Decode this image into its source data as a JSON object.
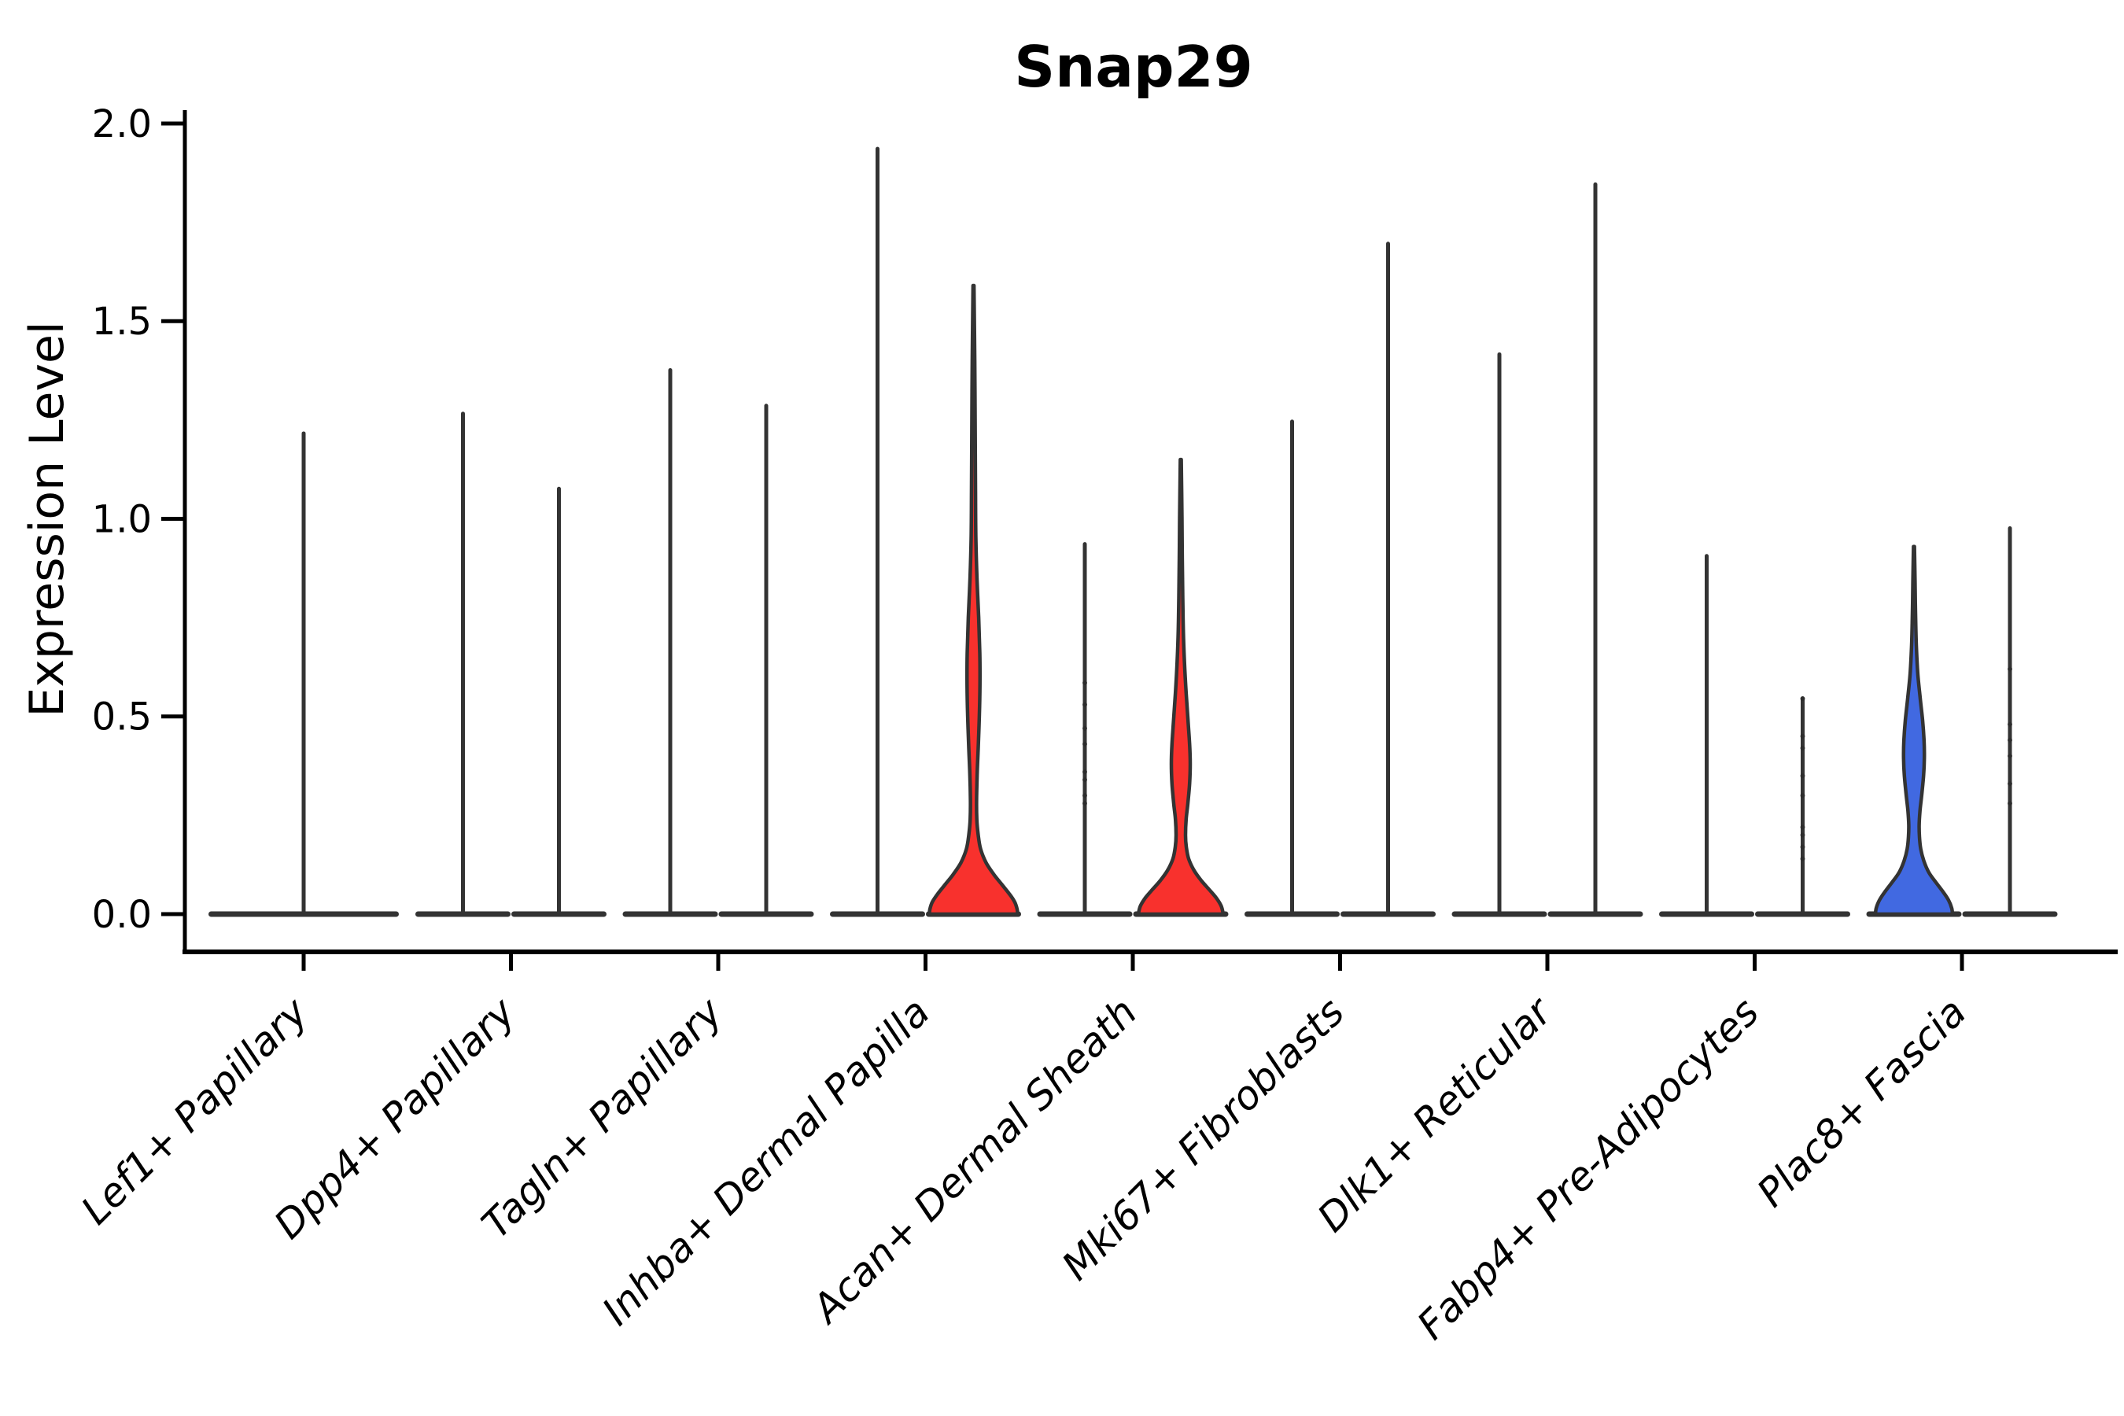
{
  "chart_data": {
    "type": "violin",
    "title": "Snap29",
    "xlabel": "",
    "ylabel": "Expression Level",
    "ylim": [
      0.0,
      2.0
    ],
    "yticks": [
      0.0,
      0.5,
      1.0,
      1.5,
      2.0
    ],
    "ytick_labels": [
      "0.0",
      "0.5",
      "1.0",
      "1.5",
      "2.0"
    ],
    "grid": false,
    "legend": "none",
    "categories": [
      "Lef1+ Papillary",
      "Dpp4+ Papillary",
      "Tagln+ Papillary",
      "Inhba+ Dermal Papilla",
      "Acan+ Dermal Sheath",
      "Mki67+ Fibroblasts",
      "Dlk1+ Reticular",
      "Fabp4+ Pre-Adipocytes",
      "Plac8+ Fascia"
    ],
    "colors": {
      "red_fill": "#F8312D",
      "blue_fill": "#4169E1",
      "violin_outline": "#333333",
      "axis": "#000000"
    },
    "violins": [
      {
        "category": "Lef1+ Papillary",
        "slot": "center",
        "style": "spike",
        "max_expression": 1.22,
        "color": "#333333",
        "dots": []
      },
      {
        "category": "Dpp4+ Papillary",
        "slot": "left",
        "style": "spike",
        "max_expression": 1.27,
        "color": "#333333",
        "dots": []
      },
      {
        "category": "Dpp4+ Papillary",
        "slot": "right",
        "style": "spike",
        "max_expression": 1.08,
        "color": "#333333",
        "dots": []
      },
      {
        "category": "Tagln+ Papillary",
        "slot": "left",
        "style": "spike",
        "max_expression": 1.38,
        "color": "#333333",
        "dots": []
      },
      {
        "category": "Tagln+ Papillary",
        "slot": "right",
        "style": "spike",
        "max_expression": 1.29,
        "color": "#333333",
        "dots": []
      },
      {
        "category": "Inhba+ Dermal Papilla",
        "slot": "left",
        "style": "spike",
        "max_expression": 1.94,
        "color": "#333333",
        "dots": []
      },
      {
        "category": "Inhba+ Dermal Papilla",
        "slot": "right",
        "style": "filled",
        "max_expression": 1.59,
        "color": "#F8312D",
        "profile": [
          [
            1.59,
            0.6
          ],
          [
            1.4,
            1.6
          ],
          [
            1.2,
            2.2
          ],
          [
            1.05,
            2.6
          ],
          [
            0.95,
            3.0
          ],
          [
            0.85,
            4.4
          ],
          [
            0.75,
            6.6
          ],
          [
            0.66,
            8.0
          ],
          [
            0.58,
            8.2
          ],
          [
            0.5,
            7.4
          ],
          [
            0.42,
            6.0
          ],
          [
            0.35,
            4.6
          ],
          [
            0.29,
            3.9
          ],
          [
            0.24,
            4.2
          ],
          [
            0.2,
            6.0
          ],
          [
            0.165,
            9.0
          ],
          [
            0.13,
            16.0
          ],
          [
            0.1,
            26.0
          ],
          [
            0.075,
            36.0
          ],
          [
            0.05,
            46.0
          ],
          [
            0.03,
            52.5
          ],
          [
            0.012,
            55.5
          ],
          [
            0.0,
            56.0
          ]
        ],
        "dots": []
      },
      {
        "category": "Acan+ Dermal Sheath",
        "slot": "left",
        "style": "spike",
        "max_expression": 0.94,
        "color": "#333333",
        "dots": [
          0.585,
          0.53,
          0.47,
          0.43,
          0.36,
          0.34,
          0.3,
          0.28
        ]
      },
      {
        "category": "Acan+ Dermal Sheath",
        "slot": "right",
        "style": "filled",
        "max_expression": 1.15,
        "color": "#F8312D",
        "profile": [
          [
            1.15,
            0.6
          ],
          [
            1.0,
            1.5
          ],
          [
            0.9,
            1.9
          ],
          [
            0.8,
            2.5
          ],
          [
            0.72,
            3.2
          ],
          [
            0.64,
            4.6
          ],
          [
            0.56,
            6.8
          ],
          [
            0.49,
            9.2
          ],
          [
            0.43,
            11.2
          ],
          [
            0.38,
            12.0
          ],
          [
            0.33,
            11.2
          ],
          [
            0.28,
            9.0
          ],
          [
            0.24,
            6.8
          ],
          [
            0.2,
            6.0
          ],
          [
            0.17,
            7.0
          ],
          [
            0.14,
            10.0
          ],
          [
            0.11,
            17.0
          ],
          [
            0.085,
            26.0
          ],
          [
            0.06,
            37.0
          ],
          [
            0.04,
            45.5
          ],
          [
            0.02,
            51.5
          ],
          [
            0.0,
            54.0
          ]
        ],
        "dots": []
      },
      {
        "category": "Mki67+ Fibroblasts",
        "slot": "left",
        "style": "spike",
        "max_expression": 1.25,
        "color": "#333333",
        "dots": []
      },
      {
        "category": "Mki67+ Fibroblasts",
        "slot": "right",
        "style": "spike",
        "max_expression": 1.7,
        "color": "#333333",
        "dots": []
      },
      {
        "category": "Dlk1+ Reticular",
        "slot": "left",
        "style": "spike",
        "max_expression": 1.42,
        "color": "#333333",
        "dots": []
      },
      {
        "category": "Dlk1+ Reticular",
        "slot": "right",
        "style": "spike",
        "max_expression": 1.85,
        "color": "#333333",
        "dots": []
      },
      {
        "category": "Fabp4+ Pre-Adipocytes",
        "slot": "left",
        "style": "spike",
        "max_expression": 0.91,
        "color": "#333333",
        "dots": []
      },
      {
        "category": "Fabp4+ Pre-Adipocytes",
        "slot": "right",
        "style": "spike",
        "max_expression": 0.55,
        "color": "#333333",
        "dots": [
          0.545,
          0.45,
          0.42,
          0.35,
          0.3,
          0.22,
          0.2,
          0.17,
          0.14
        ]
      },
      {
        "category": "Plac8+ Fascia",
        "slot": "left",
        "style": "filled",
        "max_expression": 0.93,
        "color": "#4169E1",
        "profile": [
          [
            0.93,
            0.6
          ],
          [
            0.84,
            1.4
          ],
          [
            0.76,
            2.0
          ],
          [
            0.68,
            3.0
          ],
          [
            0.61,
            4.8
          ],
          [
            0.545,
            8.0
          ],
          [
            0.49,
            11.0
          ],
          [
            0.44,
            12.8
          ],
          [
            0.395,
            13.2
          ],
          [
            0.35,
            12.2
          ],
          [
            0.3,
            9.8
          ],
          [
            0.26,
            7.6
          ],
          [
            0.225,
            6.6
          ],
          [
            0.195,
            7.0
          ],
          [
            0.165,
            8.6
          ],
          [
            0.135,
            12.5
          ],
          [
            0.105,
            19.0
          ],
          [
            0.08,
            28.0
          ],
          [
            0.055,
            37.5
          ],
          [
            0.035,
            44.0
          ],
          [
            0.015,
            48.0
          ],
          [
            0.0,
            49.0
          ]
        ],
        "dots": []
      },
      {
        "category": "Plac8+ Fascia",
        "slot": "right",
        "style": "spike",
        "max_expression": 0.98,
        "color": "#333333",
        "dots": [
          0.62,
          0.48,
          0.44,
          0.4,
          0.33,
          0.28
        ]
      }
    ]
  }
}
